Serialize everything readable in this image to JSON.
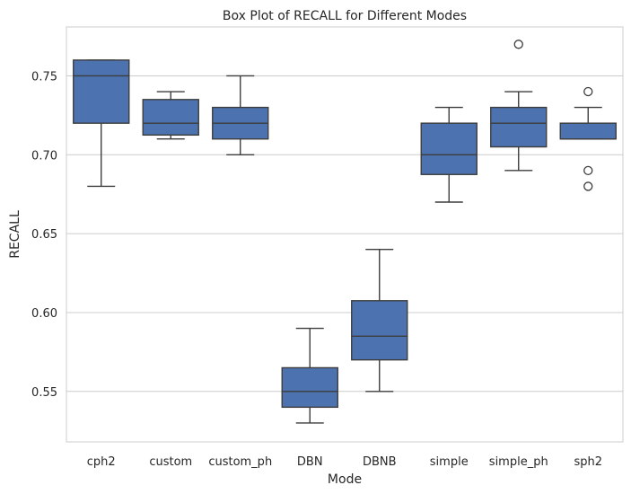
{
  "chart_data": {
    "type": "box",
    "title": "Box Plot of RECALL for Different Modes",
    "xlabel": "Mode",
    "ylabel": "RECALL",
    "ylim": [
      0.518,
      0.781
    ],
    "yticks": [
      0.55,
      0.6,
      0.65,
      0.7,
      0.75
    ],
    "ytick_labels": [
      "0.55",
      "0.60",
      "0.65",
      "0.70",
      "0.75"
    ],
    "grid": "horizontal",
    "box_color": "#4c72b0",
    "line_color": "#3d3d3d",
    "categories": [
      "cph2",
      "custom",
      "custom_ph",
      "DBN",
      "DBNB",
      "simple",
      "simple_ph",
      "sph2"
    ],
    "boxes": [
      {
        "whisker_low": 0.68,
        "q1": 0.72,
        "median": 0.75,
        "q3": 0.76,
        "whisker_high": 0.76,
        "outliers": []
      },
      {
        "whisker_low": 0.71,
        "q1": 0.7125,
        "median": 0.72,
        "q3": 0.735,
        "whisker_high": 0.74,
        "outliers": []
      },
      {
        "whisker_low": 0.7,
        "q1": 0.71,
        "median": 0.72,
        "q3": 0.73,
        "whisker_high": 0.75,
        "outliers": []
      },
      {
        "whisker_low": 0.53,
        "q1": 0.54,
        "median": 0.55,
        "q3": 0.565,
        "whisker_high": 0.59,
        "outliers": []
      },
      {
        "whisker_low": 0.55,
        "q1": 0.57,
        "median": 0.585,
        "q3": 0.6075,
        "whisker_high": 0.64,
        "outliers": []
      },
      {
        "whisker_low": 0.67,
        "q1": 0.6875,
        "median": 0.7,
        "q3": 0.72,
        "whisker_high": 0.73,
        "outliers": []
      },
      {
        "whisker_low": 0.69,
        "q1": 0.705,
        "median": 0.72,
        "q3": 0.73,
        "whisker_high": 0.74,
        "outliers": [
          0.77
        ]
      },
      {
        "whisker_low": 0.71,
        "q1": 0.71,
        "median": 0.71,
        "q3": 0.72,
        "whisker_high": 0.73,
        "outliers": [
          0.74,
          0.69,
          0.68
        ]
      }
    ]
  }
}
